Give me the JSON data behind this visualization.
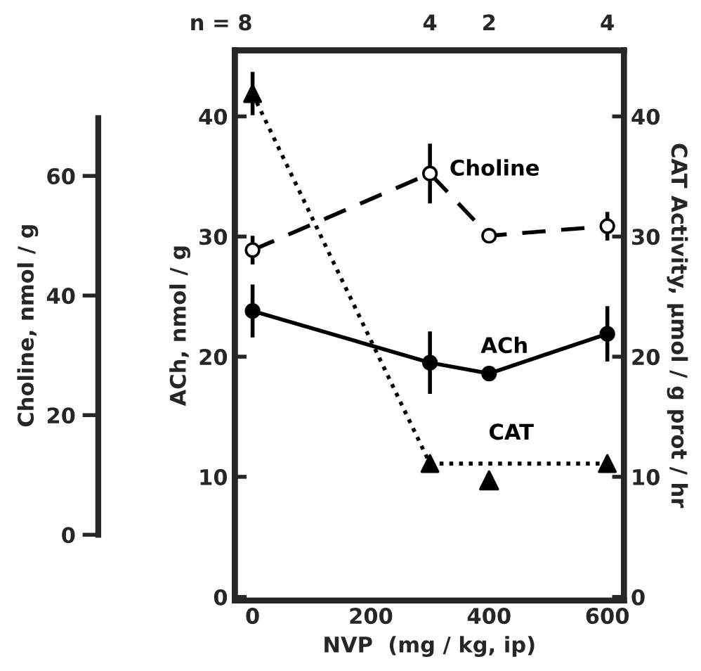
{
  "chart_data": {
    "type": "line",
    "xlabel": "NVP  (mg / kg, ip)",
    "ylabel": "ACh, nmol / g",
    "y2label": "CAT Activity, µmol / g prot / hr",
    "y3label": "Choline, nmol / g",
    "xlim": [
      -30,
      628
    ],
    "xticks": [
      0,
      200,
      400,
      600
    ],
    "annotations": [
      "n = 8",
      "4",
      "2",
      "4"
    ],
    "ylim": [
      -0.3,
      45.5
    ],
    "yticks": [
      0,
      10,
      20,
      30,
      40
    ],
    "y2lim": [
      -0.3,
      45.5
    ],
    "y2ticks": [
      0,
      10,
      20,
      30,
      40
    ],
    "y3lim": [
      -11,
      81
    ],
    "y3ticks": [
      0,
      20,
      40,
      60
    ],
    "grid": false,
    "series": [
      {
        "name": "Choline",
        "axis": "y3",
        "color": "#000000",
        "marker": "circle",
        "line_style": "dashed",
        "x": [
          0,
          300,
          400,
          600
        ],
        "values": [
          47.6,
          60.4,
          50.0,
          51.6
        ],
        "errors": [
          2.4,
          5,
          null,
          2.4
        ]
      },
      {
        "name": "ACh",
        "axis": "y",
        "color": "#000000",
        "marker": "circle",
        "line_style": "solid",
        "x": [
          0,
          300,
          400,
          600
        ],
        "values": [
          23.8,
          19.5,
          18.6,
          21.9
        ],
        "errors": [
          2.2,
          2.6,
          null,
          2.3
        ]
      },
      {
        "name": "CAT",
        "axis": "y2",
        "color": "#000000",
        "marker": "triangle",
        "line_style": "dotted",
        "x": [
          0,
          300,
          600
        ],
        "values": [
          41.9,
          11.1,
          11.1
        ],
        "errors": [
          1.8,
          null,
          null
        ]
      },
      {
        "type": "scatter",
        "axis": "y2",
        "color": "#000000",
        "marker": "triangle",
        "x": [
          400
        ],
        "values": [
          9.7
        ]
      }
    ]
  }
}
